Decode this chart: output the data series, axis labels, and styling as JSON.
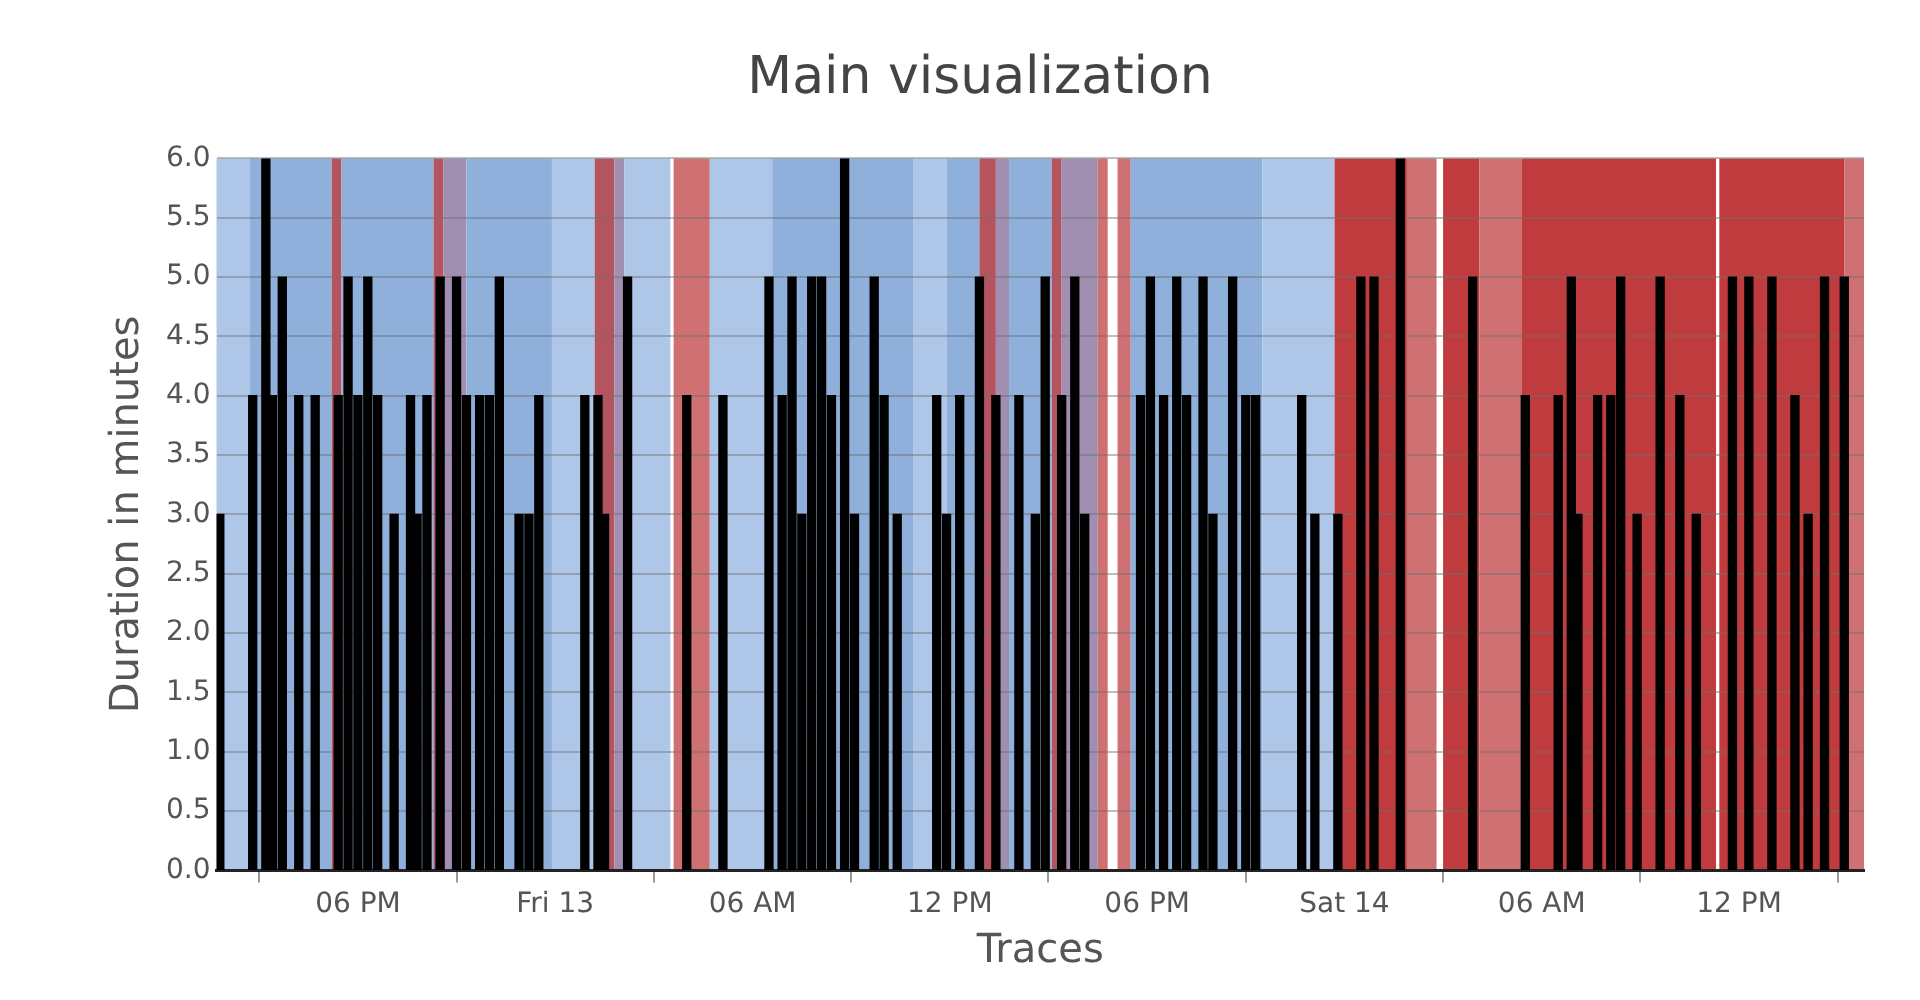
{
  "chart_data": {
    "type": "bar",
    "title": "Main visualization",
    "xlabel": "Traces",
    "ylabel": "Duration in minutes",
    "xlim": [
      "--09-12T13:42",
      "--09-14T15:48"
    ],
    "xticks": [
      {
        "value": "--09-12T18:00",
        "label": "06 PM"
      },
      {
        "value": "--09-13T00:00",
        "label": "Fri 13"
      },
      {
        "value": "--09-13T06:00",
        "label": "06 AM"
      },
      {
        "value": "--09-13T12:00",
        "label": "12 PM"
      },
      {
        "value": "--09-13T18:00",
        "label": "06 PM"
      },
      {
        "value": "--09-14T00:00",
        "label": "Sat 14"
      },
      {
        "value": "--09-14T06:00",
        "label": "06 AM"
      },
      {
        "value": "--09-14T12:00",
        "label": "12 PM"
      }
    ],
    "ylim": [
      0,
      6
    ],
    "yticks": [
      {
        "value": 0,
        "label": "0.0"
      },
      {
        "value": 0.5,
        "label": "0.5"
      },
      {
        "value": 1,
        "label": "1.0"
      },
      {
        "value": 1.5,
        "label": "1.5"
      },
      {
        "value": 2,
        "label": "2.0"
      },
      {
        "value": 2.5,
        "label": "2.5"
      },
      {
        "value": 3,
        "label": "3.0"
      },
      {
        "value": 3.5,
        "label": "3.5"
      },
      {
        "value": 4,
        "label": "4.0"
      },
      {
        "value": 4.5,
        "label": "4.5"
      },
      {
        "value": 5,
        "label": "5.0"
      },
      {
        "value": 5.5,
        "label": "5.5"
      },
      {
        "value": 6,
        "label": "6.0"
      }
    ],
    "grid": "y",
    "series": [
      {
        "color": "#000000",
        "x": [
          "--09-12T13:48",
          "--09-12T14:48",
          "--09-12T15:12",
          "--09-12T15:24",
          "--09-12T15:42",
          "--09-12T16:12",
          "--09-12T16:42",
          "--09-12T17:24",
          "--09-12T17:42",
          "--09-12T18:00",
          "--09-12T18:18",
          "--09-12T18:36",
          "--09-12T19:06",
          "--09-12T19:36",
          "--09-12T19:48",
          "--09-12T20:06",
          "--09-12T20:30",
          "--09-12T21:00",
          "--09-12T21:18",
          "--09-12T21:42",
          "--09-12T22:00",
          "--09-12T22:18",
          "--09-12T22:54",
          "--09-12T23:12",
          "--09-12T23:30",
          "--09-13T00:54",
          "--09-13T01:18",
          "--09-13T01:30",
          "--09-13T02:12",
          "--09-13T04:00",
          "--09-13T05:06",
          "--09-13T06:30",
          "--09-13T06:54",
          "--09-13T07:12",
          "--09-13T07:30",
          "--09-13T07:48",
          "--09-13T08:06",
          "--09-13T08:24",
          "--09-13T08:48",
          "--09-13T09:06",
          "--09-13T09:42",
          "--09-13T10:00",
          "--09-13T10:24",
          "--09-13T11:36",
          "--09-13T11:54",
          "--09-13T12:18",
          "--09-13T12:54",
          "--09-13T13:24",
          "--09-13T14:06",
          "--09-13T14:36",
          "--09-13T14:54",
          "--09-13T15:24",
          "--09-13T15:48",
          "--09-13T16:06",
          "--09-13T17:48",
          "--09-13T18:06",
          "--09-13T18:30",
          "--09-13T18:54",
          "--09-13T19:12",
          "--09-13T19:42",
          "--09-13T20:00",
          "--09-13T20:36",
          "--09-13T21:00",
          "--09-13T21:18",
          "--09-13T22:42",
          "--09-13T23:06",
          "--09-13T23:48",
          "--09-14T00:30",
          "--09-14T00:54",
          "--09-14T01:42",
          "--09-14T03:54",
          "--09-14T05:30",
          "--09-14T06:30",
          "--09-14T06:54",
          "--09-14T07:06",
          "--09-14T07:42",
          "--09-14T08:06",
          "--09-14T08:24",
          "--09-14T08:54",
          "--09-14T09:36",
          "--09-14T10:12",
          "--09-14T10:42",
          "--09-14T11:48",
          "--09-14T12:18",
          "--09-14T13:00",
          "--09-14T13:42",
          "--09-14T14:06",
          "--09-14T14:36",
          "--09-14T15:12"
        ],
        "values": [
          3,
          4,
          6,
          4,
          5,
          4,
          4,
          4,
          5,
          4,
          5,
          4,
          3,
          4,
          3,
          4,
          5,
          5,
          4,
          4,
          4,
          5,
          3,
          3,
          4,
          4,
          4,
          3,
          5,
          4,
          4,
          5,
          4,
          5,
          3,
          5,
          5,
          4,
          6,
          3,
          5,
          4,
          3,
          4,
          3,
          4,
          5,
          4,
          4,
          3,
          5,
          4,
          5,
          3,
          4,
          5,
          4,
          5,
          4,
          5,
          3,
          5,
          4,
          4,
          4,
          3,
          3,
          5,
          5,
          6,
          5,
          4,
          4,
          5,
          3,
          4,
          4,
          5,
          3,
          5,
          4,
          3,
          5,
          5,
          5,
          4,
          3,
          5,
          5
        ]
      }
    ],
    "bands": [
      {
        "axis": "x",
        "from": "--09-12T13:42",
        "to": "--09-12T14:42",
        "color": "#aec7e8"
      },
      {
        "axis": "x",
        "from": "--09-12T14:42",
        "to": "--09-12T17:12",
        "color": "#8eb0da"
      },
      {
        "axis": "x",
        "from": "--09-12T17:12",
        "to": "--09-12T17:30",
        "color": "#b4545f"
      },
      {
        "axis": "x",
        "from": "--09-12T17:30",
        "to": "--09-12T20:18",
        "color": "#8eb0da"
      },
      {
        "axis": "x",
        "from": "--09-12T20:18",
        "to": "--09-12T20:36",
        "color": "#b4545f"
      },
      {
        "axis": "x",
        "from": "--09-12T20:36",
        "to": "--09-12T21:18",
        "color": "#a08fb0"
      },
      {
        "axis": "x",
        "from": "--09-12T21:18",
        "to": "--09-12T23:54",
        "color": "#8eb0da"
      },
      {
        "axis": "x",
        "from": "--09-12T23:54",
        "to": "--09-13T01:12",
        "color": "#aec7e8"
      },
      {
        "axis": "x",
        "from": "--09-13T01:12",
        "to": "--09-13T01:48",
        "color": "#b4545f"
      },
      {
        "axis": "x",
        "from": "--09-13T01:48",
        "to": "--09-13T02:06",
        "color": "#a08fb0"
      },
      {
        "axis": "x",
        "from": "--09-13T02:06",
        "to": "--09-13T03:30",
        "color": "#aec7e8"
      },
      {
        "axis": "x",
        "from": "--09-13T03:36",
        "to": "--09-13T04:42",
        "color": "#cf7072"
      },
      {
        "axis": "x",
        "from": "--09-13T04:42",
        "to": "--09-13T06:36",
        "color": "#aec7e8"
      },
      {
        "axis": "x",
        "from": "--09-13T06:36",
        "to": "--09-13T10:54",
        "color": "#8eb0da"
      },
      {
        "axis": "x",
        "from": "--09-13T10:54",
        "to": "--09-13T11:54",
        "color": "#aec7e8"
      },
      {
        "axis": "x",
        "from": "--09-13T11:54",
        "to": "--09-13T12:54",
        "color": "#8eb0da"
      },
      {
        "axis": "x",
        "from": "--09-13T12:54",
        "to": "--09-13T13:24",
        "color": "#b4545f"
      },
      {
        "axis": "x",
        "from": "--09-13T13:24",
        "to": "--09-13T13:48",
        "color": "#a08fb0"
      },
      {
        "axis": "x",
        "from": "--09-13T13:48",
        "to": "--09-13T15:06",
        "color": "#8eb0da"
      },
      {
        "axis": "x",
        "from": "--09-13T15:06",
        "to": "--09-13T15:24",
        "color": "#b4545f"
      },
      {
        "axis": "x",
        "from": "--09-13T15:24",
        "to": "--09-13T16:30",
        "color": "#a08fb0"
      },
      {
        "axis": "x",
        "from": "--09-13T16:30",
        "to": "--09-13T16:48",
        "color": "#cf7072"
      },
      {
        "axis": "x",
        "from": "--09-13T17:06",
        "to": "--09-13T17:30",
        "color": "#cf7072"
      },
      {
        "axis": "x",
        "from": "--09-13T17:30",
        "to": "--09-13T21:30",
        "color": "#8eb0da"
      },
      {
        "axis": "x",
        "from": "--09-13T21:30",
        "to": "--09-13T23:42",
        "color": "#aec7e8"
      },
      {
        "axis": "x",
        "from": "--09-13T23:42",
        "to": "--09-14T01:54",
        "color": "#c03b3d"
      },
      {
        "axis": "x",
        "from": "--09-14T01:54",
        "to": "--09-14T02:48",
        "color": "#cf7072"
      },
      {
        "axis": "x",
        "from": "--09-14T03:00",
        "to": "--09-14T04:06",
        "color": "#c03b3d"
      },
      {
        "axis": "x",
        "from": "--09-14T04:06",
        "to": "--09-14T05:24",
        "color": "#cf7072"
      },
      {
        "axis": "x",
        "from": "--09-14T05:24",
        "to": "--09-14T11:18",
        "color": "#c03b3d"
      },
      {
        "axis": "x",
        "from": "--09-14T11:24",
        "to": "--09-14T15:12",
        "color": "#c03b3d"
      },
      {
        "axis": "x",
        "from": "--09-14T15:12",
        "to": "--09-14T15:48",
        "color": "#cf7072"
      }
    ]
  }
}
